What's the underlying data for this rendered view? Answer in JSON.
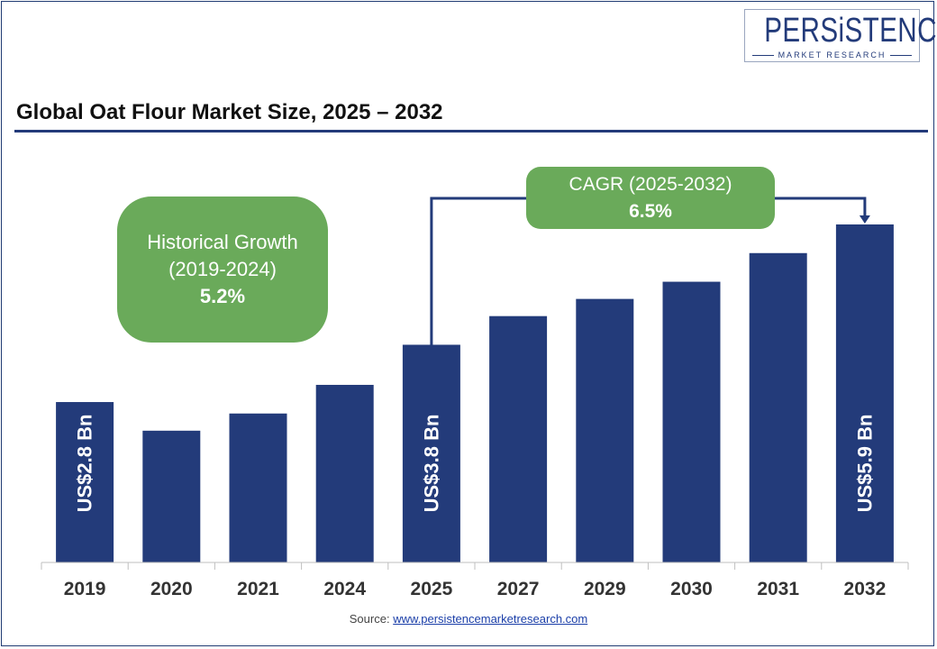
{
  "logo": {
    "brand": "PERSiSTENCE",
    "tagline": "MARKET RESEARCH"
  },
  "colors": {
    "bar": "#233b7a",
    "callout": "#6aaa5a",
    "axis": "#bfbfbf"
  },
  "callouts": {
    "historical": {
      "line1": "Historical Growth",
      "line2": "(2019-2024)",
      "value": "5.2%"
    },
    "cagr": {
      "line1": "CAGR (2025-2032)",
      "value": "6.5%"
    }
  },
  "source": {
    "label": "Source:",
    "link": "www.persistencemarketresearch.com"
  },
  "chart_data": {
    "type": "bar",
    "title": "Global Oat Flour Market Size, 2025 – 2032",
    "categories": [
      "2019",
      "2020",
      "2021",
      "2024",
      "2025",
      "2027",
      "2029",
      "2030",
      "2031",
      "2032"
    ],
    "values": [
      2.8,
      2.3,
      2.6,
      3.1,
      3.8,
      4.3,
      4.6,
      4.9,
      5.4,
      5.9
    ],
    "data_labels": {
      "2019": "US$2.8 Bn",
      "2025": "US$3.8 Bn",
      "2032": "US$5.9 Bn"
    },
    "grid": false,
    "legend": "none"
  }
}
